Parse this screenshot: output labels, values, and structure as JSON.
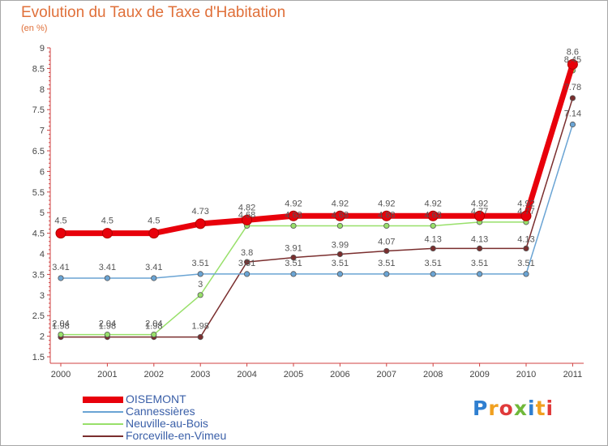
{
  "chart_data": {
    "type": "line",
    "title": "Evolution du Taux de Taxe d'Habitation",
    "subtitle": "(en %)",
    "categories": [
      "2000",
      "2001",
      "2002",
      "2003",
      "2004",
      "2005",
      "2006",
      "2007",
      "2008",
      "2009",
      "2010",
      "2011"
    ],
    "ylim": [
      1.5,
      9
    ],
    "yticks": [
      "1.5",
      "2",
      "2.5",
      "3",
      "3.5",
      "4",
      "4.5",
      "5",
      "5.5",
      "6",
      "6.5",
      "7",
      "7.5",
      "8",
      "8.5",
      "9"
    ],
    "grid": false,
    "legend_position": "bottom-left",
    "series": [
      {
        "name": "OISEMONT",
        "color": "#e8000b",
        "values": [
          4.5,
          4.5,
          4.5,
          4.73,
          4.82,
          4.92,
          4.92,
          4.92,
          4.92,
          4.92,
          4.92,
          8.6
        ],
        "labels": [
          "4.5",
          "4.5",
          "4.5",
          "4.73",
          "4.82",
          "4.92",
          "4.92",
          "4.92",
          "4.92",
          "4.92",
          "4.92",
          "8.6"
        ]
      },
      {
        "name": "Cannessières",
        "color": "#6aa4d4",
        "values": [
          3.41,
          3.41,
          3.41,
          3.51,
          3.51,
          3.51,
          3.51,
          3.51,
          3.51,
          3.51,
          3.51,
          7.14
        ],
        "labels": [
          "3.41",
          "3.41",
          "3.41",
          "3.51",
          "3.51",
          "3.51",
          "3.51",
          "3.51",
          "3.51",
          "3.51",
          "3.51",
          "7.14"
        ]
      },
      {
        "name": "Neuville-au-Bois",
        "color": "#98e06a",
        "values": [
          2.04,
          2.04,
          2.04,
          3,
          4.68,
          4.68,
          4.68,
          4.68,
          4.68,
          4.77,
          4.77,
          8.45
        ],
        "labels": [
          "2.04",
          "2.04",
          "2.04",
          "3",
          "4.68",
          "4.68",
          "4.68",
          "4.68",
          "4.68",
          "4.77",
          "4.77",
          "8.45"
        ]
      },
      {
        "name": "Forceville-en-Vimeu",
        "color": "#7a2e2e",
        "values": [
          1.98,
          1.98,
          1.98,
          1.98,
          3.8,
          3.91,
          3.99,
          4.07,
          4.13,
          4.13,
          4.13,
          7.78
        ],
        "labels": [
          "1.98",
          "1.98",
          "1.98",
          "1.98",
          "3.8",
          "3.91",
          "3.99",
          "4.07",
          "4.13",
          "4.13",
          "4.13",
          "7.78"
        ]
      }
    ]
  },
  "logo": {
    "letters": [
      "P",
      "r",
      "o",
      "x",
      "i",
      "t",
      "i"
    ],
    "colors": [
      "#2f7fd0",
      "#f0a020",
      "#e03a3a",
      "#70b83a",
      "#2f7fd0",
      "#f0a020",
      "#e03a3a"
    ]
  }
}
